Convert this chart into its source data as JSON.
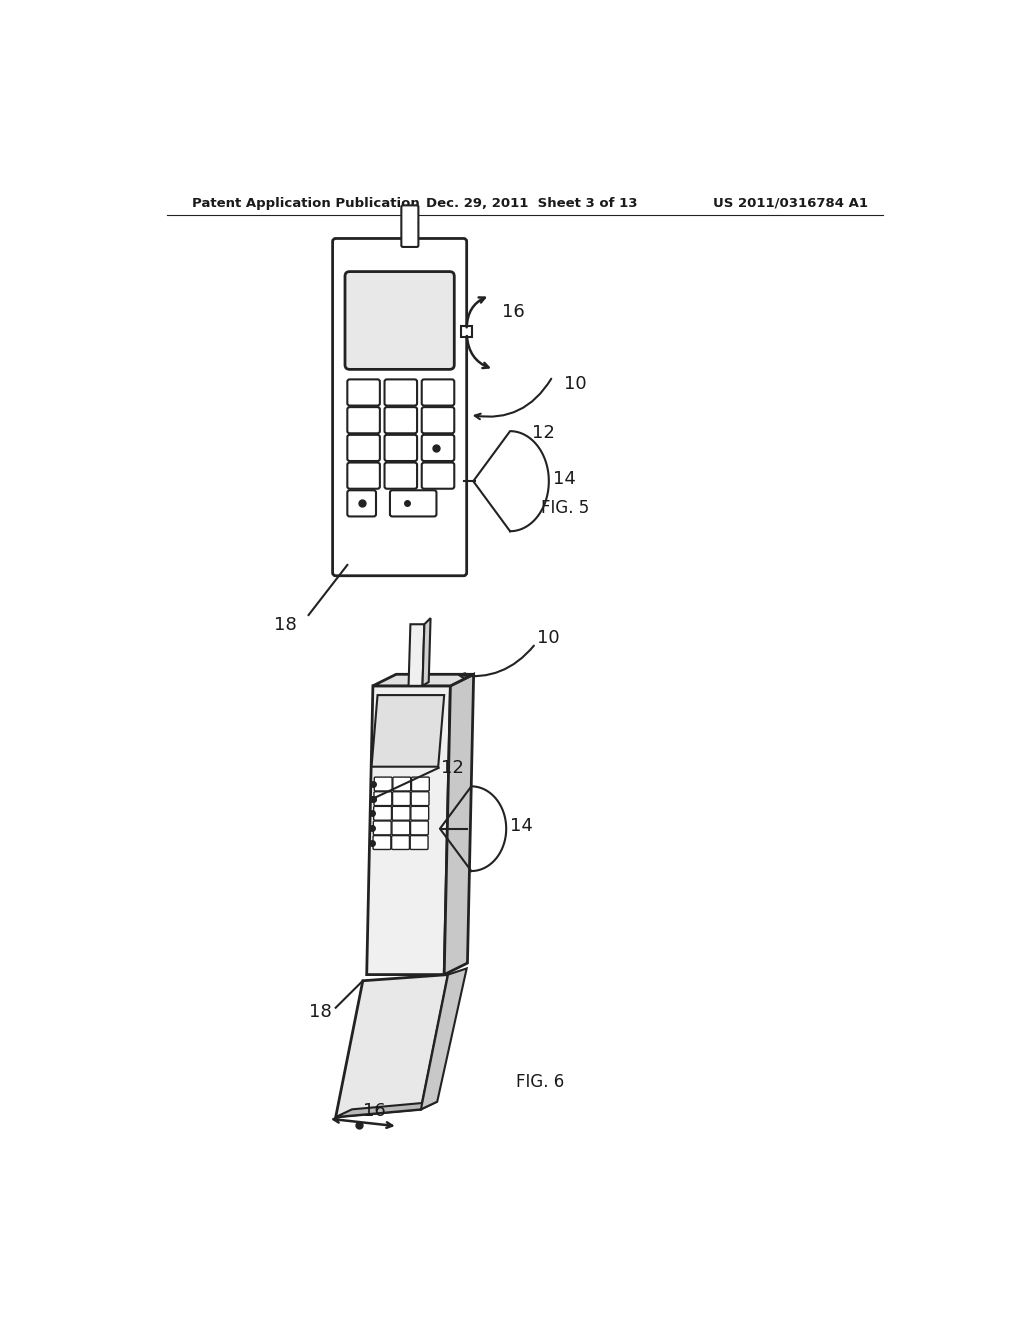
{
  "background_color": "#ffffff",
  "header_left": "Patent Application Publication",
  "header_mid": "Dec. 29, 2011  Sheet 3 of 13",
  "header_right": "US 2011/0316784 A1",
  "fig5_label": "FIG. 5",
  "fig6_label": "FIG. 6",
  "text_color": "#1a1a1a",
  "line_color": "#222222"
}
